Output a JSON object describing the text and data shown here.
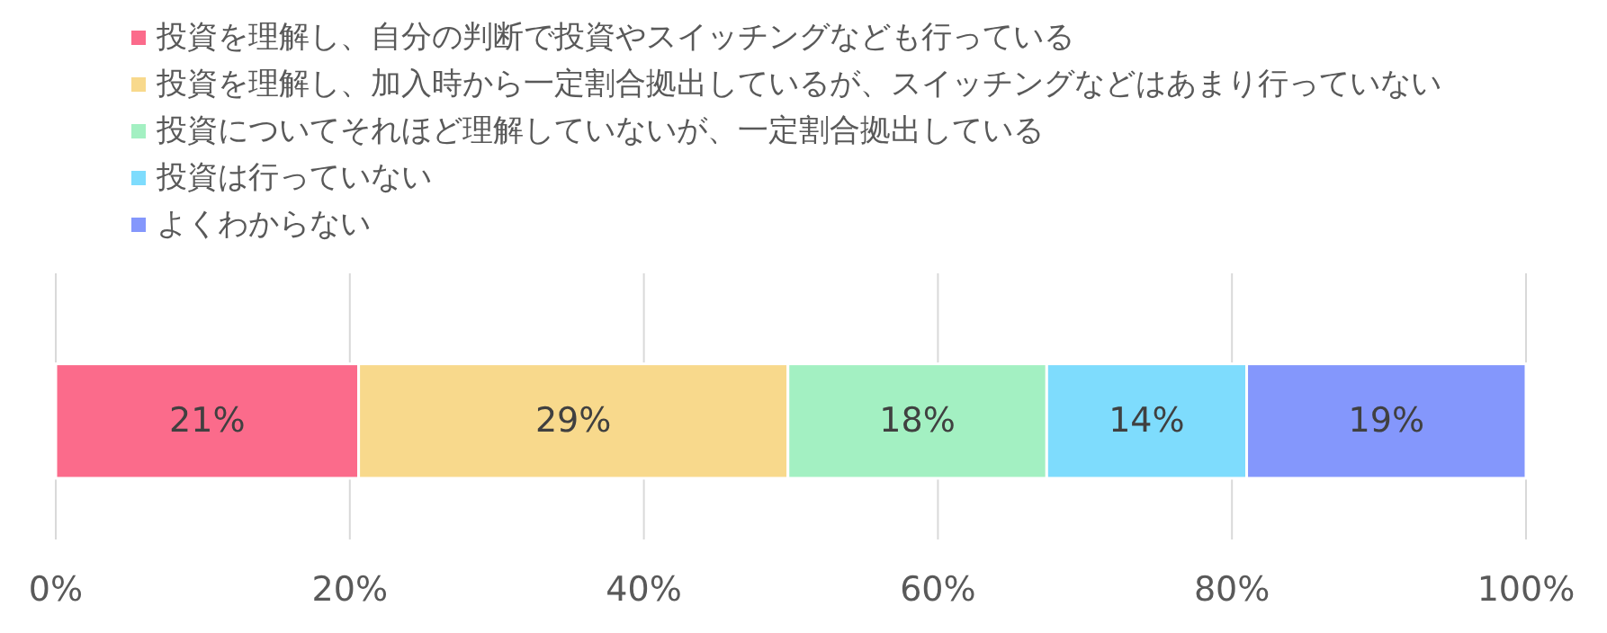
{
  "chart_data": {
    "type": "bar",
    "orientation": "horizontal",
    "stacked": true,
    "categories": [
      null
    ],
    "series": [
      {
        "name": "投資を理解し、自分の判断で投資やスイッチングなども行っている",
        "color": "#fb6b8b",
        "values": [
          20.6
        ],
        "value_labels": [
          "21%"
        ]
      },
      {
        "name": "投資を理解し、加入時から一定割合拠出しているが、スイッチングなどはあまり行っていない",
        "color": "#f8d98c",
        "values": [
          29.2
        ],
        "value_labels": [
          "29%"
        ]
      },
      {
        "name": "投資についてそれほど理解していないが、一定割合拠出している",
        "color": "#a3f0c2",
        "values": [
          17.6
        ],
        "value_labels": [
          "18%"
        ]
      },
      {
        "name": "投資は行っていない",
        "color": "#7edcfd",
        "values": [
          13.6
        ],
        "value_labels": [
          "14%"
        ]
      },
      {
        "name": "よくわからない",
        "color": "#8497fc",
        "values": [
          19.0
        ],
        "value_labels": [
          "19%"
        ]
      }
    ],
    "xlim": [
      0,
      100
    ],
    "xticks": [
      {
        "value": 0,
        "label": "0%"
      },
      {
        "value": 20,
        "label": "20%"
      },
      {
        "value": 40,
        "label": "40%"
      },
      {
        "value": 60,
        "label": "60%"
      },
      {
        "value": 80,
        "label": "80%"
      },
      {
        "value": 100,
        "label": "100%"
      }
    ],
    "grid": "x",
    "legend": "top left",
    "tick_labels": "x"
  }
}
